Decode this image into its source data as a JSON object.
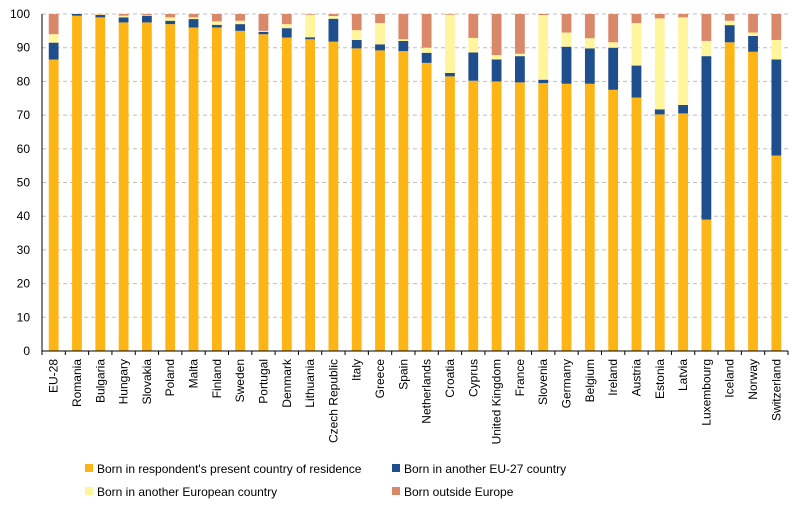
{
  "chart_data": {
    "type": "bar",
    "stacked": true,
    "title": "",
    "xlabel": "",
    "ylabel": "",
    "ylim": [
      0,
      100
    ],
    "yticks": [
      0,
      10,
      20,
      30,
      40,
      50,
      60,
      70,
      80,
      90,
      100
    ],
    "grid": "horizontal dashed",
    "legend_position": "bottom",
    "categories": [
      "EU-28",
      "Romania",
      "Bulgaria",
      "Hungary",
      "Slovakia",
      "Poland",
      "Malta",
      "Finland",
      "Sweden",
      "Portugal",
      "Denmark",
      "Lithuania",
      "Czech Republic",
      "Italy",
      "Greece",
      "Spain",
      "Netherlands",
      "Croatia",
      "Cyprus",
      "United Kingdom",
      "France",
      "Slovenia",
      "Germany",
      "Belgium",
      "Ireland",
      "Austria",
      "Estonia",
      "Latvia",
      "Luxembourg",
      "Iceland",
      "Norway",
      "Switzerland"
    ],
    "series": [
      {
        "name": "Born in respondent's present country of residence",
        "color": "#FDB515",
        "values": [
          86.5,
          99.5,
          99.0,
          97.5,
          97.5,
          97.0,
          96.0,
          96.0,
          95.0,
          94.0,
          93.0,
          92.5,
          91.8,
          89.8,
          89.2,
          89.0,
          85.5,
          81.5,
          80.2,
          80.0,
          79.7,
          79.5,
          79.3,
          79.3,
          77.5,
          75.2,
          70.2,
          70.5,
          39.0,
          91.6,
          88.8,
          58.0
        ]
      },
      {
        "name": "Born in another EU-27 country",
        "color": "#1F4E8C",
        "values": [
          5.0,
          0.5,
          0.7,
          1.5,
          2.0,
          1.0,
          2.5,
          0.8,
          2.0,
          0.7,
          2.8,
          0.6,
          6.8,
          2.5,
          1.8,
          3.0,
          3.0,
          1.0,
          8.4,
          6.5,
          7.8,
          1.0,
          11.0,
          10.5,
          12.5,
          9.5,
          1.5,
          2.5,
          48.5,
          5.1,
          4.7,
          28.5
        ]
      },
      {
        "name": "Born in another European country",
        "color": "#FFF59D",
        "values": [
          2.5,
          0.0,
          0.2,
          0.5,
          0.2,
          1.0,
          0.5,
          1.0,
          1.0,
          0.3,
          1.2,
          6.7,
          0.8,
          2.9,
          6.3,
          0.5,
          1.5,
          17.3,
          4.3,
          1.3,
          0.7,
          19.2,
          4.2,
          3.0,
          1.6,
          12.6,
          27.0,
          26.0,
          4.5,
          1.3,
          1.0,
          5.8
        ]
      },
      {
        "name": "Born outside Europe",
        "color": "#D9896A",
        "values": [
          6.0,
          0.0,
          0.1,
          0.5,
          0.3,
          1.0,
          1.0,
          2.2,
          2.0,
          5.0,
          3.0,
          0.2,
          0.6,
          4.8,
          2.7,
          7.5,
          10.0,
          0.2,
          7.1,
          12.2,
          11.8,
          0.3,
          5.5,
          7.2,
          8.4,
          2.7,
          1.3,
          1.0,
          8.0,
          2.0,
          5.5,
          7.7
        ]
      }
    ]
  }
}
